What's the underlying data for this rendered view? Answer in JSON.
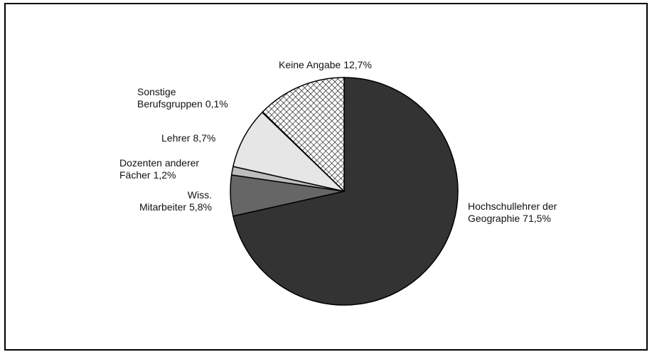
{
  "chart_data": {
    "type": "pie",
    "categories": [
      "Hochschullehrer der\nGeographie",
      "Wiss.\nMitarbeiter",
      "Dozenten anderer\nFächer",
      "Lehrer",
      "Sonstige\nBerufsgruppen",
      "Keine Angabe"
    ],
    "values": [
      71.5,
      5.8,
      1.2,
      8.7,
      0.1,
      12.7
    ],
    "value_labels": [
      "71,5%",
      "5,8%",
      "1,2%",
      "8,7%",
      "0,1%",
      "12,7%"
    ],
    "colors": [
      "#333333",
      "#666666",
      "#bdbdbd",
      "#e6e6e6",
      "#ffffff",
      "crosshatch"
    ]
  }
}
